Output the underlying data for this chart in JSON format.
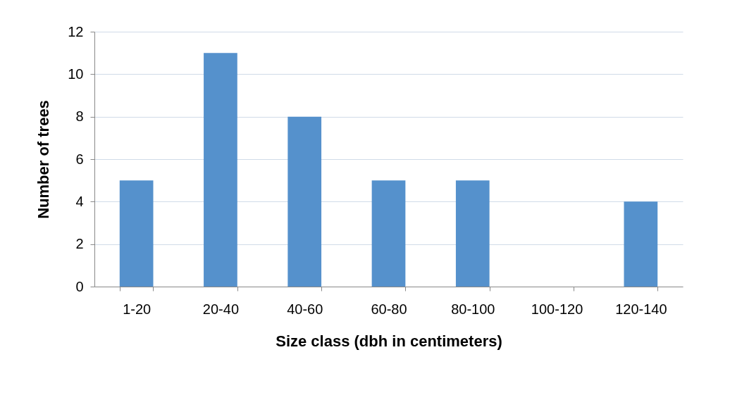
{
  "chart_data": {
    "type": "bar",
    "xlabel": "Size class (dbh in centimeters)",
    "ylabel": "Number of trees",
    "categories": [
      "1-20",
      "20-40",
      "40-60",
      "60-80",
      "80-100",
      "100-120",
      "120-140"
    ],
    "values": [
      5,
      11,
      8,
      5,
      5,
      0,
      4
    ],
    "color": "#5591cc",
    "ylim": [
      0,
      12
    ],
    "yticks": [
      0,
      2,
      4,
      6,
      8,
      10,
      12
    ],
    "grid": "y"
  }
}
